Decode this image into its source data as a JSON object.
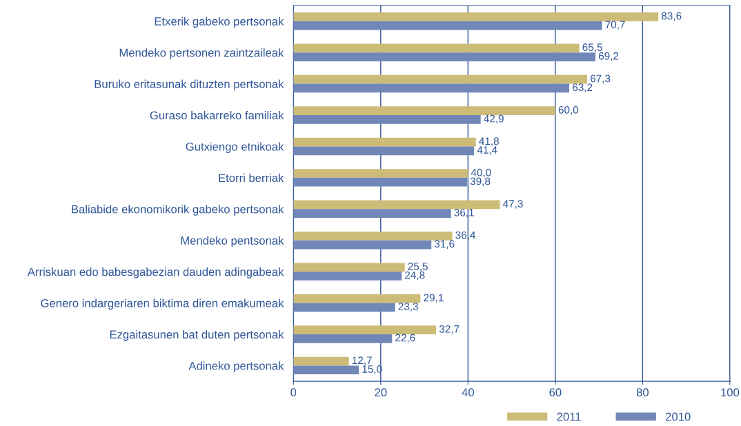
{
  "chart_data": {
    "type": "bar",
    "orientation": "horizontal",
    "categories": [
      "Etxerik gabeko pertsonak",
      "Mendeko pertsonen zaintzaileak",
      "Buruko eritasunak dituzten pertsonak",
      "Guraso bakarreko familiak",
      "Gutxiengo etnikoak",
      "Etorri berriak",
      "Baliabide ekonomikorik gabeko pertsonak",
      "Mendeko pentsonak",
      "Arriskuan edo babesgabezian dauden adingabeak",
      "Genero indargeriaren biktima diren emakumeak",
      "Ezgaitasunen bat duten pertsonak",
      "Adineko pertsonak"
    ],
    "series": [
      {
        "name": "2011",
        "color": "#cdbb78",
        "values": [
          83.6,
          65.5,
          67.3,
          60.0,
          41.8,
          40.0,
          47.3,
          36.4,
          25.5,
          29.1,
          32.7,
          12.7
        ],
        "value_labels": [
          "83,6",
          "65,5",
          "67,3",
          "60,0",
          "41,8",
          "40,0",
          "47,3",
          "36,4",
          "25,5",
          "29,1",
          "32,7",
          "12,7"
        ]
      },
      {
        "name": "2010",
        "color": "#7087b8",
        "values": [
          70.7,
          69.2,
          63.2,
          42.9,
          41.4,
          39.8,
          36.1,
          31.6,
          24.8,
          23.3,
          22.6,
          15.0
        ],
        "value_labels": [
          "70,7",
          "69,2",
          "63,2",
          "42,9",
          "41,4",
          "39,8",
          "36,1",
          "31,6",
          "24,8",
          "23,3",
          "22,6",
          "15,0"
        ]
      }
    ],
    "xlim": [
      0,
      100
    ],
    "xticks": [
      0,
      20,
      40,
      60,
      80,
      100
    ],
    "grid": "x",
    "legend": "bottom"
  }
}
